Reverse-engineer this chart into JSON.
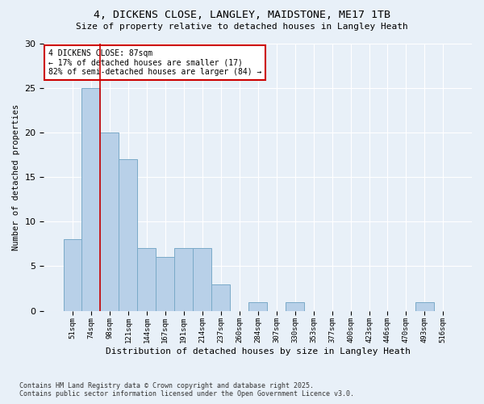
{
  "title": "4, DICKENS CLOSE, LANGLEY, MAIDSTONE, ME17 1TB",
  "subtitle": "Size of property relative to detached houses in Langley Heath",
  "xlabel": "Distribution of detached houses by size in Langley Heath",
  "ylabel": "Number of detached properties",
  "categories": [
    "51sqm",
    "74sqm",
    "98sqm",
    "121sqm",
    "144sqm",
    "167sqm",
    "191sqm",
    "214sqm",
    "237sqm",
    "260sqm",
    "284sqm",
    "307sqm",
    "330sqm",
    "353sqm",
    "377sqm",
    "400sqm",
    "423sqm",
    "446sqm",
    "470sqm",
    "493sqm",
    "516sqm"
  ],
  "values": [
    8,
    25,
    20,
    17,
    7,
    6,
    7,
    7,
    3,
    0,
    1,
    0,
    1,
    0,
    0,
    0,
    0,
    0,
    0,
    1,
    0
  ],
  "bar_color": "#b8d0e8",
  "bar_edge_color": "#7aaac8",
  "background_color": "#e8f0f8",
  "grid_color": "#ffffff",
  "vline_x": 1.5,
  "vline_color": "#cc0000",
  "annotation_text": "4 DICKENS CLOSE: 87sqm\n← 17% of detached houses are smaller (17)\n82% of semi-detached houses are larger (84) →",
  "annotation_box_color": "#ffffff",
  "annotation_box_edge": "#cc0000",
  "ylim": [
    0,
    30
  ],
  "yticks": [
    0,
    5,
    10,
    15,
    20,
    25,
    30
  ],
  "footer_line1": "Contains HM Land Registry data © Crown copyright and database right 2025.",
  "footer_line2": "Contains public sector information licensed under the Open Government Licence v3.0."
}
